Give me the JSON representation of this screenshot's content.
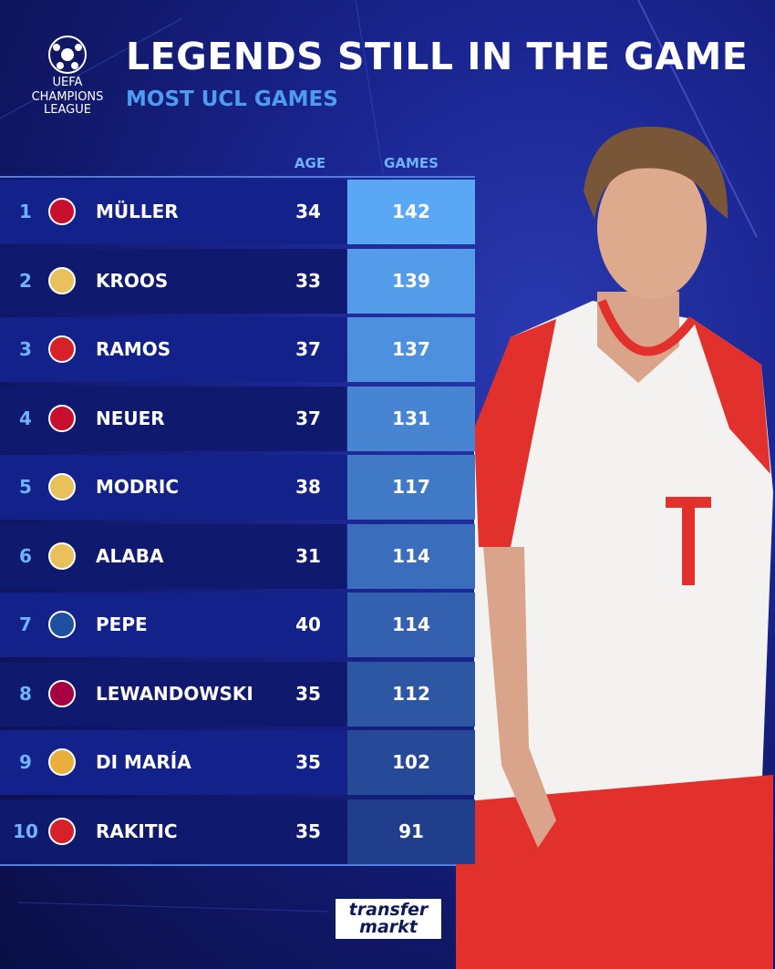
{
  "logo": {
    "line1": "UEFA",
    "line2": "CHAMPIONS",
    "line3": "LEAGUE"
  },
  "header": {
    "title": "LEGENDS STILL IN THE GAME",
    "subtitle": "MOST UCL GAMES"
  },
  "table": {
    "columns": [
      "AGE",
      "GAMES"
    ],
    "rows": [
      [
        "1",
        "MÜLLER",
        "34",
        "142"
      ],
      [
        "2",
        "KROOS",
        "33",
        "139"
      ],
      [
        "3",
        "RAMOS",
        "37",
        "137"
      ],
      [
        "4",
        "NEUER",
        "37",
        "131"
      ],
      [
        "5",
        "MODRIC",
        "38",
        "117"
      ],
      [
        "6",
        "ALABA",
        "31",
        "114"
      ],
      [
        "7",
        "PEPE",
        "40",
        "114"
      ],
      [
        "8",
        "LEWANDOWSKI",
        "35",
        "112"
      ],
      [
        "9",
        "DI MARÍA",
        "35",
        "102"
      ],
      [
        "10",
        "RAKITIC",
        "35",
        "91"
      ]
    ]
  },
  "footer": {
    "brand1": "transfer",
    "brand2": "markt"
  }
}
